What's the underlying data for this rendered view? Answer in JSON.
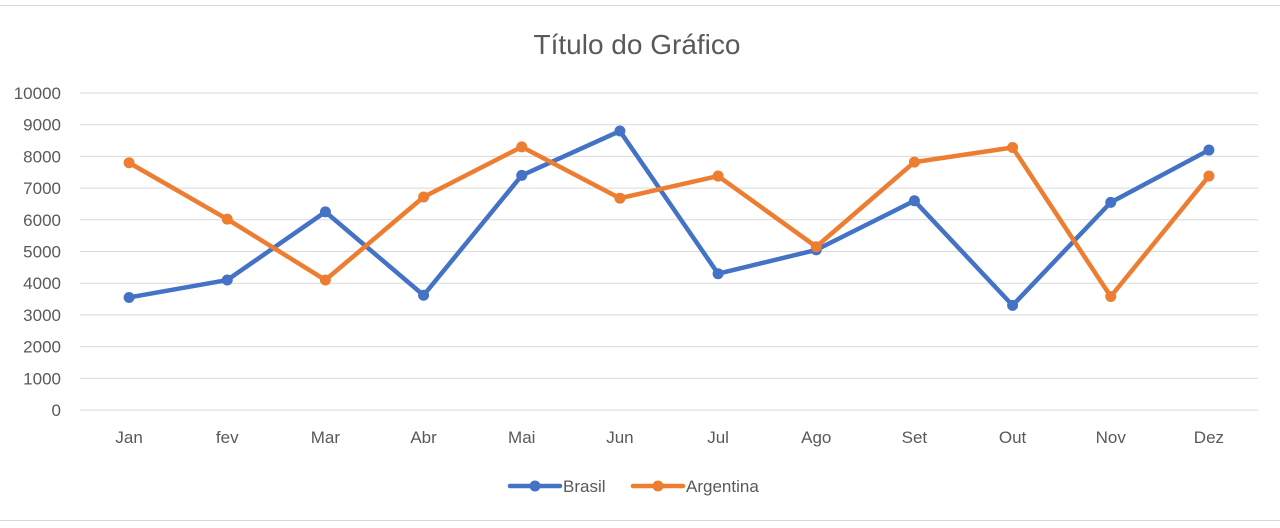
{
  "chart_data": {
    "type": "line",
    "title": "Título do Gráfico",
    "xlabel": "",
    "ylabel": "",
    "categories": [
      "Jan",
      "fev",
      "Mar",
      "Abr",
      "Mai",
      "Jun",
      "Jul",
      "Ago",
      "Set",
      "Out",
      "Nov",
      "Dez"
    ],
    "ylim": [
      0,
      10000
    ],
    "yticks": [
      "0",
      "1000",
      "2000",
      "3000",
      "4000",
      "5000",
      "6000",
      "7000",
      "8000",
      "9000",
      "10000"
    ],
    "grid": true,
    "legend_position": "bottom",
    "series": [
      {
        "name": "Brasil",
        "color": "#4472c4",
        "values": [
          3550,
          4100,
          6250,
          3620,
          7400,
          8800,
          4300,
          5050,
          6600,
          3300,
          6550,
          8200
        ]
      },
      {
        "name": "Argentina",
        "color": "#ed7d31",
        "values": [
          7800,
          6020,
          4100,
          6720,
          8300,
          6680,
          7380,
          5150,
          7820,
          8280,
          3580,
          7380
        ]
      }
    ]
  }
}
